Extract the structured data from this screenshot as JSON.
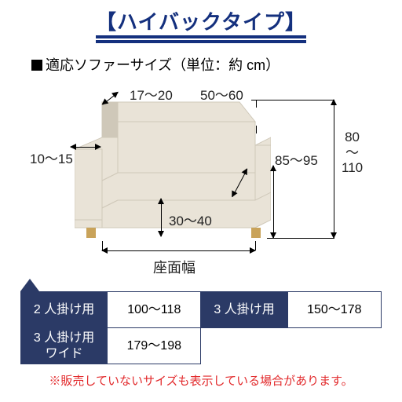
{
  "colors": {
    "banner_text": "#14307e",
    "banner_underline": "#14307e",
    "table_header_bg": "#2b3a66",
    "table_border": "#2b3a66",
    "note_text": "#e2292b",
    "sofa_fill": "#e9e3d7",
    "sofa_shadow": "#cfc8b9",
    "leg": "#c9a35a",
    "text": "#222222"
  },
  "typography": {
    "banner_fontsize": 26,
    "banner_weight": "700",
    "subtitle_fontsize": 18,
    "dim_fontsize": 17,
    "seat_label_fontsize": 18,
    "table_fontsize": 16,
    "note_fontsize": 15
  },
  "banner": {
    "open": "【",
    "title": "ハイバックタイプ",
    "close": "】"
  },
  "subtitle": {
    "main": "適応ソファーサイズ",
    "unit": "（単位：約 cm）"
  },
  "sofa_diagram": {
    "dims": {
      "arm_top": "10～15",
      "back_top": "17～20",
      "seat_depth": "50～60",
      "seat_height": "30～40",
      "overall_height": "80\n〜\n110",
      "arm_height": "85～95"
    },
    "seat_label": "座面幅"
  },
  "size_table": {
    "col_widths": [
      "24%",
      "26%",
      "24%",
      "26%"
    ],
    "rows": [
      [
        {
          "label": "2 人掛け用",
          "range": "100～118"
        },
        {
          "label": "3 人掛け用",
          "range": "150～178"
        }
      ],
      [
        {
          "label": "3 人掛け用\nワイド",
          "range": "179～198"
        }
      ]
    ]
  },
  "note": "※販売していないサイズも表示している場合があります。"
}
